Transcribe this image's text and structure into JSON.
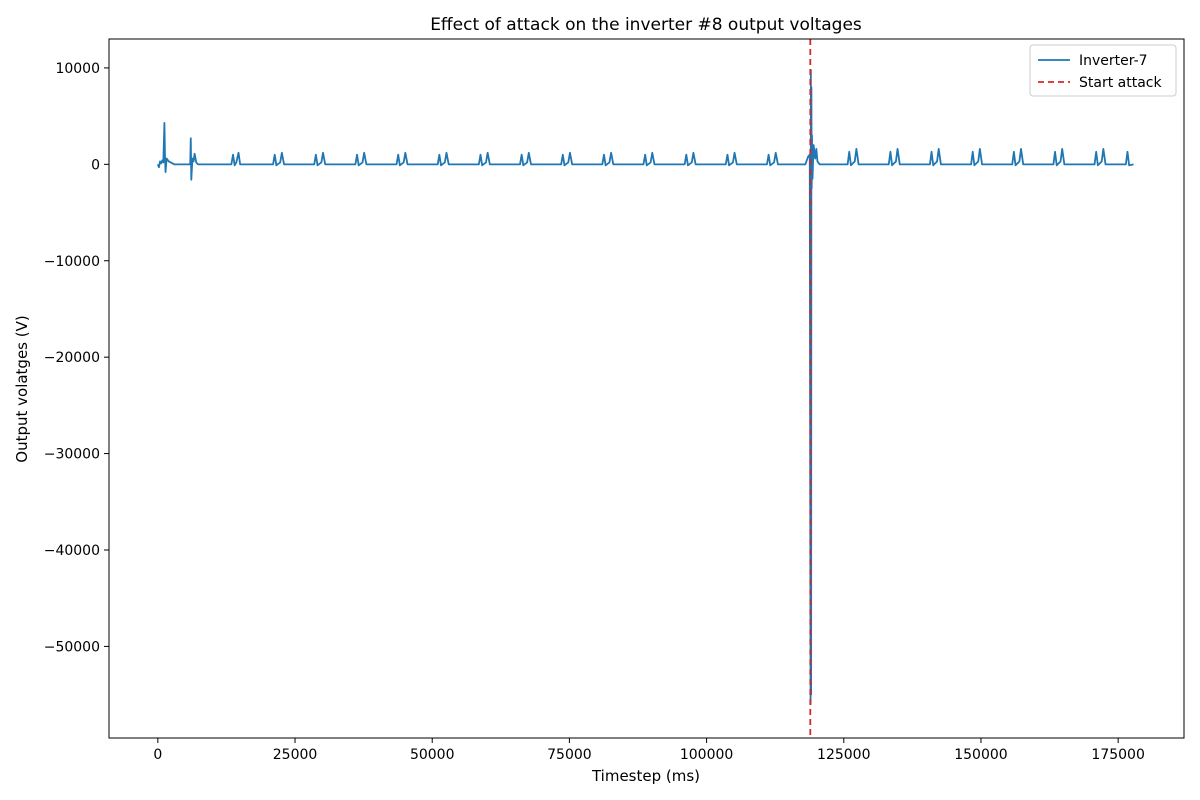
{
  "chart_data": {
    "type": "line",
    "title": "Effect of attack on the inverter #8 output voltages",
    "xlabel": "Timestep (ms)",
    "ylabel": "Output volatges (V)",
    "xlim": [
      -8900,
      187000
    ],
    "ylim": [
      -59500,
      13000
    ],
    "xticks": [
      0,
      25000,
      50000,
      75000,
      100000,
      125000,
      150000,
      175000
    ],
    "yticks": [
      10000,
      0,
      -10000,
      -20000,
      -30000,
      -40000,
      -50000
    ],
    "grid": false,
    "legend_placement": "top-right",
    "attack_start": 118900,
    "series": [
      {
        "name": "Inverter-7",
        "color": "#1f77b4",
        "style": "solid",
        "x": [
          0,
          200,
          400,
          600,
          800,
          1000,
          1200,
          1300,
          1400,
          1600,
          2000,
          3000,
          5000,
          5900,
          6000,
          6100,
          6300,
          6500,
          6700,
          7000,
          7300,
          7600,
          8000,
          10000,
          13400,
          13700,
          14000,
          14300,
          14700,
          15000,
          15400,
          16000,
          21000,
          21300,
          21600,
          22300,
          22600,
          23000,
          28500,
          28800,
          29100,
          29800,
          30100,
          30500,
          36000,
          36300,
          36600,
          37300,
          37600,
          38000,
          43500,
          43800,
          44100,
          44800,
          45100,
          45500,
          51000,
          51300,
          51600,
          52300,
          52600,
          53000,
          58500,
          58800,
          59100,
          59800,
          60100,
          60500,
          66000,
          66300,
          66600,
          67300,
          67600,
          68000,
          73500,
          73800,
          74100,
          74800,
          75100,
          75500,
          81000,
          81300,
          81600,
          82300,
          82600,
          83000,
          88500,
          88800,
          89100,
          89800,
          90100,
          90500,
          96000,
          96300,
          96600,
          97300,
          97600,
          98000,
          103500,
          103800,
          104100,
          104800,
          105100,
          105500,
          111000,
          111300,
          111600,
          112300,
          112600,
          113000,
          118000,
          118500,
          118800,
          118950,
          119000,
          119050,
          119100,
          119150,
          119200,
          119300,
          119500,
          119800,
          120000,
          120200,
          120600,
          121000,
          125700,
          126000,
          126300,
          127000,
          127300,
          127700,
          133200,
          133500,
          133800,
          134500,
          134800,
          135200,
          140700,
          141000,
          141300,
          142000,
          142300,
          142700,
          148200,
          148500,
          148800,
          149500,
          149800,
          150200,
          155700,
          156000,
          156300,
          157000,
          157300,
          157700,
          163200,
          163500,
          163800,
          164500,
          164800,
          165200,
          170700,
          171000,
          171300,
          172000,
          172300,
          172700,
          176400,
          176700,
          177000,
          177800
        ],
        "y": [
          0,
          -300,
          300,
          100,
          400,
          200,
          4300,
          900,
          -800,
          600,
          300,
          0,
          0,
          0,
          2700,
          -1600,
          600,
          300,
          1100,
          200,
          0,
          0,
          0,
          0,
          0,
          1000,
          -100,
          200,
          1200,
          0,
          0,
          0,
          0,
          1000,
          -100,
          200,
          1200,
          0,
          0,
          1000,
          -100,
          200,
          1200,
          0,
          0,
          1000,
          -100,
          200,
          1200,
          0,
          0,
          1000,
          -100,
          200,
          1200,
          0,
          0,
          1000,
          -100,
          200,
          1200,
          0,
          0,
          1000,
          -100,
          200,
          1200,
          0,
          0,
          1000,
          -100,
          200,
          1200,
          0,
          0,
          1000,
          -100,
          200,
          1200,
          0,
          0,
          1000,
          -100,
          200,
          1200,
          0,
          0,
          1000,
          -100,
          200,
          1200,
          0,
          0,
          1000,
          -100,
          200,
          1200,
          0,
          0,
          1000,
          -100,
          200,
          1200,
          0,
          0,
          1000,
          -100,
          200,
          1200,
          0,
          0,
          800,
          1000,
          -56000,
          9800,
          -55000,
          8000,
          -2500,
          3000,
          -1500,
          2000,
          600,
          1600,
          300,
          0,
          0,
          0,
          1300,
          -100,
          300,
          1600,
          0,
          0,
          1300,
          -100,
          300,
          1600,
          0,
          0,
          1300,
          -100,
          300,
          1600,
          0,
          0,
          1300,
          -100,
          300,
          1600,
          0,
          0,
          1300,
          -100,
          300,
          1600,
          0,
          0,
          1300,
          -100,
          300,
          1600,
          0,
          0,
          1300,
          -100,
          300,
          1600,
          0,
          0,
          1300,
          -100,
          0
        ]
      },
      {
        "name": "Start attack",
        "color": "#d62728",
        "style": "dashed"
      }
    ]
  }
}
